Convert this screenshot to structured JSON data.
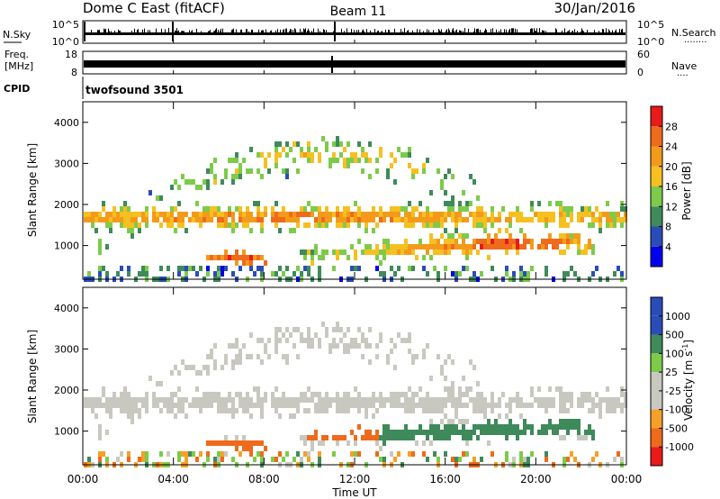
{
  "header": {
    "station": "Dome C East (fitACF)",
    "beam": "Beam 11",
    "date": "30/Jan/2016"
  },
  "nsky_panel": {
    "label": "N.Sky",
    "top_tick": "10^5",
    "bottom_tick": "10^0",
    "right_top_tick": "10^5",
    "right_bottom_tick": "10^0",
    "right_label": "N.Search",
    "right_dots": "........"
  },
  "freq_panel": {
    "label_line1": "Freq.",
    "label_line2": "[MHz]",
    "top_tick": "18",
    "bottom_tick": "8",
    "right_top_tick": "60",
    "right_bottom_tick": "0",
    "right_label": "Nave",
    "right_dots": "...."
  },
  "cpid_panel": {
    "label": "CPID",
    "program": "twofsound 3501"
  },
  "colors": {
    "power_scale": [
      "#0000ee",
      "#2a4cb8",
      "#3f8a5a",
      "#7ccb4a",
      "#f5c020",
      "#f39a1a",
      "#ef6a1a",
      "#e81a1a"
    ],
    "velocity_scale": [
      "#e81a1a",
      "#ef6a1a",
      "#f5a028",
      "#c8c8c0",
      "#c8c8c0",
      "#7ccb4a",
      "#3f8a5a",
      "#2a4cb8"
    ]
  },
  "chart_data": [
    {
      "type": "heatmap",
      "name": "power",
      "ylabel": "Slant Range [km]",
      "yticks": [
        "1000",
        "2000",
        "3000",
        "4000"
      ],
      "ylim": [
        180,
        4500
      ],
      "xlim": [
        0,
        24
      ],
      "colorbar_label": "Power [dB]",
      "colorbar_ticks": [
        "4",
        "8",
        "12",
        "16",
        "20",
        "24",
        "28"
      ],
      "colorbar_range": [
        0,
        32
      ]
    },
    {
      "type": "heatmap",
      "name": "velocity",
      "ylabel": "Slant Range [km]",
      "yticks": [
        "1000",
        "2000",
        "3000",
        "4000"
      ],
      "ylim": [
        180,
        4500
      ],
      "xlim": [
        0,
        24
      ],
      "xlabel": "Time UT",
      "xticks": [
        "00:00",
        "04:00",
        "08:00",
        "12:00",
        "16:00",
        "20:00",
        "00:00"
      ],
      "colorbar_label": "Velocity [m s^-1]",
      "colorbar_ticks": [
        "1000",
        "500",
        "100",
        "25",
        "-25",
        "-100",
        "-500",
        "-1000"
      ]
    }
  ]
}
